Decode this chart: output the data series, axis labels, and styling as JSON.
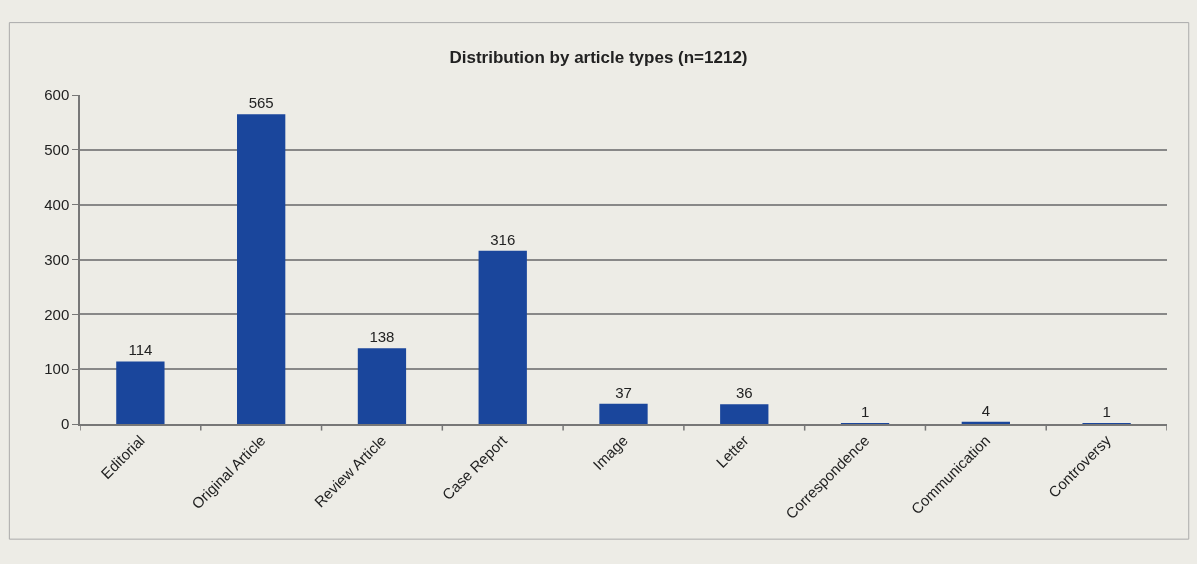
{
  "chart_data": {
    "type": "bar",
    "title": "Distribution by article types (n=1212)",
    "categories": [
      "Editorial",
      "Original Article",
      "Review Article",
      "Case Report",
      "Image",
      "Letter",
      "Correspondence",
      "Communication",
      "Controversy"
    ],
    "values": [
      114,
      565,
      138,
      316,
      37,
      36,
      1,
      4,
      1
    ],
    "color": "#1a469c",
    "ylim": [
      0,
      600
    ],
    "yticks": [
      0,
      100,
      200,
      300,
      400,
      500,
      600
    ],
    "grid": "y",
    "data_labels": true,
    "legend": false
  }
}
